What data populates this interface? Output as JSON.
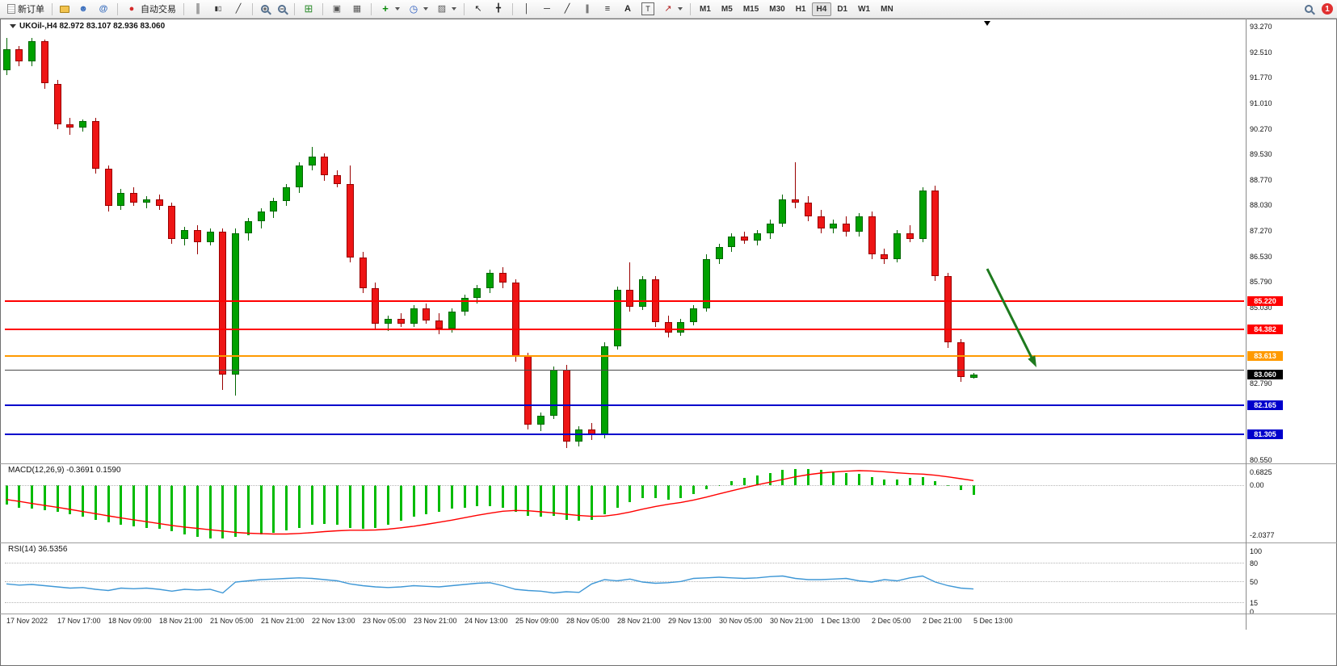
{
  "toolbar": {
    "groups": [
      {
        "items": [
          {
            "name": "new-order-button",
            "icon": "new-order-icon",
            "label": "新订单"
          }
        ]
      },
      {
        "items": [
          {
            "name": "market-watch-button",
            "icon": "accounts-icon"
          },
          {
            "name": "profile-button",
            "icon": "profile-icon"
          },
          {
            "name": "community-button",
            "icon": "community-icon"
          }
        ]
      },
      {
        "items": [
          {
            "name": "autotrade-button",
            "icon": "autotrade-icon",
            "label": "自动交易"
          }
        ]
      },
      {
        "items": [
          {
            "name": "bar-chart-button",
            "icon": "bar-chart-icon"
          },
          {
            "name": "candlestick-button",
            "icon": "candlestick-icon"
          },
          {
            "name": "line-chart-button",
            "icon": "line-chart-icon"
          }
        ]
      },
      {
        "items": [
          {
            "name": "zoom-in-button",
            "icon": "zoom-in-icon"
          },
          {
            "name": "zoom-out-button",
            "icon": "zoom-out-icon"
          }
        ]
      },
      {
        "items": [
          {
            "name": "tile-windows-button",
            "icon": "tile-windows-icon"
          }
        ]
      },
      {
        "items": [
          {
            "name": "arrange-charts-button",
            "icon": "arrange-icon"
          },
          {
            "name": "cascade-charts-button",
            "icon": "cascade-icon"
          }
        ]
      },
      {
        "items": [
          {
            "name": "indicators-button",
            "icon": "indicators-icon",
            "dropdown": true
          },
          {
            "name": "periods-button",
            "icon": "clock-icon",
            "dropdown": true
          },
          {
            "name": "templates-button",
            "icon": "template-icon",
            "dropdown": true
          }
        ]
      },
      {
        "items": [
          {
            "name": "cursor-button",
            "icon": "cursor-icon"
          },
          {
            "name": "crosshair-button",
            "icon": "crosshair-icon"
          }
        ]
      },
      {
        "items": [
          {
            "name": "vertical-line-button",
            "icon": "vertical-line-icon"
          },
          {
            "name": "horizontal-line-button",
            "icon": "horizontal-line-icon"
          },
          {
            "name": "trendline-button",
            "icon": "trendline-icon"
          },
          {
            "name": "channel-button",
            "icon": "channel-icon"
          },
          {
            "name": "fibonacci-button",
            "icon": "fibonacci-icon"
          },
          {
            "name": "text-button",
            "icon": "text-icon"
          },
          {
            "name": "label-button",
            "icon": "label-icon"
          },
          {
            "name": "arrows-button",
            "icon": "arrows-icon",
            "dropdown": true
          }
        ]
      }
    ],
    "timeframes": [
      "M1",
      "M5",
      "M15",
      "M30",
      "H1",
      "H4",
      "D1",
      "W1",
      "MN"
    ],
    "active_timeframe": "H4",
    "notification_count": "1"
  },
  "chart": {
    "title": "UKOil-,H4 82.972 83.107 82.936 83.060",
    "symbol": "UKOil-",
    "period": "H4",
    "ohlc": {
      "open": "82.972",
      "high": "83.107",
      "low": "82.936",
      "close": "83.060"
    },
    "price_axis_labels": [
      "93.270",
      "92.510",
      "91.770",
      "91.010",
      "90.270",
      "89.530",
      "88.770",
      "88.030",
      "87.270",
      "86.530",
      "85.790",
      "85.030",
      "82.790",
      "80.550"
    ],
    "hlines": [
      {
        "label": "85.220",
        "price": 85.22,
        "color": "#ff0000",
        "badge": true
      },
      {
        "label": "84.382",
        "price": 84.382,
        "color": "#ff0000",
        "badge": true
      },
      {
        "label": "83.613",
        "price": 83.613,
        "color": "#ff9a00",
        "badge": true
      },
      {
        "label": "",
        "price": 83.17,
        "color": "#4a4a4a",
        "badge": false
      },
      {
        "label": "82.165",
        "price": 82.165,
        "color": "#0000cc",
        "badge": true
      },
      {
        "label": "81.305",
        "price": 81.305,
        "color": "#0000cc",
        "badge": true
      }
    ],
    "bid": {
      "label": "83.060",
      "price": 83.06,
      "color": "#000000"
    },
    "macd_label": "MACD(12,26,9) -0.3691 0.1590",
    "macd_axis_labels": [
      "0.6825",
      "0.00",
      "-2.0377"
    ],
    "rsi_label": "RSI(14) 36.5356",
    "rsi_axis_labels": [
      "100",
      "80",
      "50",
      "15",
      "0"
    ],
    "arrow_object": {
      "type": "arrow",
      "direction": "down-right",
      "color": "#1e7a1e"
    }
  },
  "chart_data": {
    "type": "candlestick",
    "title": "UKOil-,H4",
    "ylim": [
      80.55,
      93.27
    ],
    "x_labels": [
      "17 Nov 2022",
      "17 Nov 17:00",
      "18 Nov 09:00",
      "18 Nov 21:00",
      "21 Nov 05:00",
      "21 Nov 21:00",
      "22 Nov 13:00",
      "23 Nov 05:00",
      "23 Nov 21:00",
      "24 Nov 13:00",
      "25 Nov 09:00",
      "28 Nov 05:00",
      "28 Nov 21:00",
      "29 Nov 13:00",
      "30 Nov 05:00",
      "30 Nov 21:00",
      "1 Dec 13:00",
      "2 Dec 05:00",
      "2 Dec 21:00",
      "5 Dec 13:00"
    ],
    "candles": [
      [
        92.0,
        92.95,
        91.85,
        92.6
      ],
      [
        92.6,
        92.7,
        92.1,
        92.25
      ],
      [
        92.25,
        92.95,
        92.1,
        92.85
      ],
      [
        92.85,
        92.9,
        91.45,
        91.6
      ],
      [
        91.6,
        91.7,
        90.25,
        90.4
      ],
      [
        90.4,
        90.6,
        90.1,
        90.3
      ],
      [
        90.3,
        90.55,
        90.2,
        90.5
      ],
      [
        90.5,
        90.6,
        88.95,
        89.1
      ],
      [
        89.1,
        89.2,
        87.85,
        88.0
      ],
      [
        88.0,
        88.5,
        87.9,
        88.4
      ],
      [
        88.4,
        88.55,
        88.0,
        88.1
      ],
      [
        88.1,
        88.3,
        87.95,
        88.2
      ],
      [
        88.2,
        88.35,
        87.9,
        88.0
      ],
      [
        88.0,
        88.1,
        86.9,
        87.05
      ],
      [
        87.05,
        87.4,
        86.85,
        87.3
      ],
      [
        87.3,
        87.45,
        86.6,
        86.95
      ],
      [
        86.95,
        87.35,
        86.85,
        87.25
      ],
      [
        87.25,
        87.35,
        82.6,
        83.05
      ],
      [
        83.05,
        87.35,
        82.45,
        87.2
      ],
      [
        87.2,
        87.65,
        87.0,
        87.55
      ],
      [
        87.55,
        87.95,
        87.35,
        87.85
      ],
      [
        87.85,
        88.25,
        87.65,
        88.15
      ],
      [
        88.15,
        88.65,
        88.0,
        88.55
      ],
      [
        88.55,
        89.3,
        88.4,
        89.2
      ],
      [
        89.2,
        89.75,
        89.05,
        89.45
      ],
      [
        89.45,
        89.55,
        88.75,
        88.9
      ],
      [
        88.9,
        89.05,
        88.55,
        88.65
      ],
      [
        88.65,
        89.2,
        86.35,
        86.5
      ],
      [
        86.5,
        86.65,
        85.45,
        85.6
      ],
      [
        85.6,
        85.75,
        84.4,
        84.55
      ],
      [
        84.55,
        84.8,
        84.35,
        84.7
      ],
      [
        84.7,
        84.85,
        84.45,
        84.55
      ],
      [
        84.55,
        85.1,
        84.45,
        85.0
      ],
      [
        85.0,
        85.15,
        84.55,
        84.65
      ],
      [
        84.65,
        84.85,
        84.25,
        84.4
      ],
      [
        84.4,
        85.0,
        84.3,
        84.9
      ],
      [
        84.9,
        85.4,
        84.8,
        85.3
      ],
      [
        85.3,
        85.7,
        85.15,
        85.6
      ],
      [
        85.6,
        86.15,
        85.45,
        86.05
      ],
      [
        86.05,
        86.2,
        85.6,
        85.75
      ],
      [
        85.75,
        85.85,
        83.45,
        83.6
      ],
      [
        83.6,
        83.7,
        81.45,
        81.6
      ],
      [
        81.6,
        81.95,
        81.4,
        81.85
      ],
      [
        81.85,
        83.3,
        81.75,
        83.2
      ],
      [
        83.2,
        83.35,
        80.9,
        81.1
      ],
      [
        81.1,
        81.55,
        80.95,
        81.45
      ],
      [
        81.45,
        81.65,
        81.15,
        81.3
      ],
      [
        81.3,
        84.0,
        81.2,
        83.9
      ],
      [
        83.9,
        85.65,
        83.8,
        85.55
      ],
      [
        85.55,
        86.35,
        84.9,
        85.05
      ],
      [
        85.05,
        85.95,
        84.95,
        85.85
      ],
      [
        85.85,
        85.95,
        84.45,
        84.6
      ],
      [
        84.6,
        84.8,
        84.15,
        84.3
      ],
      [
        84.3,
        84.7,
        84.2,
        84.6
      ],
      [
        84.6,
        85.1,
        84.5,
        85.0
      ],
      [
        85.0,
        86.6,
        84.9,
        86.45
      ],
      [
        86.45,
        86.9,
        86.3,
        86.8
      ],
      [
        86.8,
        87.2,
        86.65,
        87.1
      ],
      [
        87.1,
        87.25,
        86.9,
        87.0
      ],
      [
        87.0,
        87.3,
        86.85,
        87.2
      ],
      [
        87.2,
        87.6,
        87.05,
        87.5
      ],
      [
        87.5,
        88.35,
        87.4,
        88.2
      ],
      [
        88.2,
        89.3,
        87.95,
        88.1
      ],
      [
        88.1,
        88.3,
        87.55,
        87.7
      ],
      [
        87.7,
        87.9,
        87.2,
        87.35
      ],
      [
        87.35,
        87.6,
        87.2,
        87.5
      ],
      [
        87.5,
        87.7,
        87.1,
        87.25
      ],
      [
        87.25,
        87.8,
        87.1,
        87.7
      ],
      [
        87.7,
        87.85,
        86.45,
        86.6
      ],
      [
        86.6,
        86.75,
        86.3,
        86.45
      ],
      [
        86.45,
        87.3,
        86.35,
        87.2
      ],
      [
        87.2,
        87.45,
        86.95,
        87.05
      ],
      [
        87.05,
        88.55,
        86.95,
        88.45
      ],
      [
        88.45,
        88.6,
        85.8,
        85.95
      ],
      [
        85.95,
        86.05,
        83.85,
        84.0
      ],
      [
        84.0,
        84.1,
        82.85,
        83.0
      ],
      [
        82.972,
        83.107,
        82.936,
        83.06
      ]
    ],
    "indicators": [
      {
        "name": "MACD",
        "params": "12,26,9",
        "current": "-0.3691 0.1590",
        "range": [
          -2.0377,
          0.6825
        ],
        "histogram": [
          -0.75,
          -0.85,
          -0.9,
          -0.95,
          -1.0,
          -1.1,
          -1.2,
          -1.3,
          -1.4,
          -1.5,
          -1.55,
          -1.6,
          -1.65,
          -1.75,
          -1.85,
          -1.95,
          -2.0,
          -2.0,
          -1.95,
          -1.9,
          -1.85,
          -1.8,
          -1.7,
          -1.6,
          -1.5,
          -1.45,
          -1.5,
          -1.6,
          -1.65,
          -1.6,
          -1.5,
          -1.35,
          -1.2,
          -1.1,
          -1.0,
          -0.9,
          -0.85,
          -0.8,
          -0.8,
          -0.85,
          -1.0,
          -1.15,
          -1.2,
          -1.15,
          -1.3,
          -1.35,
          -1.3,
          -1.1,
          -0.85,
          -0.65,
          -0.5,
          -0.5,
          -0.55,
          -0.5,
          -0.35,
          -0.15,
          0.0,
          0.15,
          0.25,
          0.35,
          0.45,
          0.55,
          0.6,
          0.6,
          0.55,
          0.5,
          0.45,
          0.4,
          0.3,
          0.2,
          0.2,
          0.25,
          0.3,
          0.15,
          -0.05,
          -0.2,
          -0.3691
        ],
        "signal": [
          -0.55,
          -0.62,
          -0.7,
          -0.77,
          -0.84,
          -0.92,
          -1.0,
          -1.08,
          -1.16,
          -1.24,
          -1.31,
          -1.38,
          -1.45,
          -1.52,
          -1.58,
          -1.63,
          -1.68,
          -1.73,
          -1.78,
          -1.81,
          -1.83,
          -1.84,
          -1.84,
          -1.82,
          -1.79,
          -1.75,
          -1.72,
          -1.7,
          -1.7,
          -1.69,
          -1.66,
          -1.61,
          -1.55,
          -1.48,
          -1.4,
          -1.32,
          -1.23,
          -1.14,
          -1.06,
          -0.99,
          -0.96,
          -0.97,
          -1.01,
          -1.05,
          -1.1,
          -1.15,
          -1.18,
          -1.17,
          -1.11,
          -1.02,
          -0.91,
          -0.81,
          -0.73,
          -0.66,
          -0.57,
          -0.46,
          -0.34,
          -0.22,
          -0.11,
          0.0,
          0.1,
          0.2,
          0.3,
          0.38,
          0.44,
          0.48,
          0.51,
          0.53,
          0.52,
          0.49,
          0.45,
          0.42,
          0.4,
          0.36,
          0.3,
          0.23,
          0.159
        ]
      },
      {
        "name": "RSI",
        "params": "14",
        "current": 36.5356,
        "range": [
          0,
          100
        ],
        "levels": [
          15,
          50,
          80
        ],
        "values": [
          45,
          43,
          44,
          42,
          40,
          38,
          39,
          36,
          34,
          38,
          37,
          38,
          36,
          33,
          36,
          35,
          36,
          30,
          48,
          50,
          52,
          53,
          54,
          55,
          54,
          52,
          50,
          45,
          42,
          40,
          39,
          40,
          42,
          41,
          40,
          42,
          44,
          46,
          47,
          42,
          36,
          34,
          33,
          30,
          32,
          31,
          45,
          52,
          50,
          53,
          48,
          46,
          47,
          49,
          54,
          55,
          56,
          55,
          54,
          55,
          57,
          58,
          54,
          52,
          52,
          53,
          54,
          50,
          48,
          52,
          50,
          55,
          58,
          48,
          42,
          38,
          36.5
        ]
      }
    ]
  },
  "colors": {
    "bull": "#00a100",
    "bull_border": "#006600",
    "bear": "#ee1515",
    "bear_border": "#990000",
    "macd_hist": "#00bb00",
    "macd_signal": "#ff0000",
    "rsi_line": "#3e97d6",
    "line_red": "#ff0000",
    "line_orange": "#ff9a00",
    "line_blue": "#0000cc",
    "arrow": "#1e7a1e"
  }
}
